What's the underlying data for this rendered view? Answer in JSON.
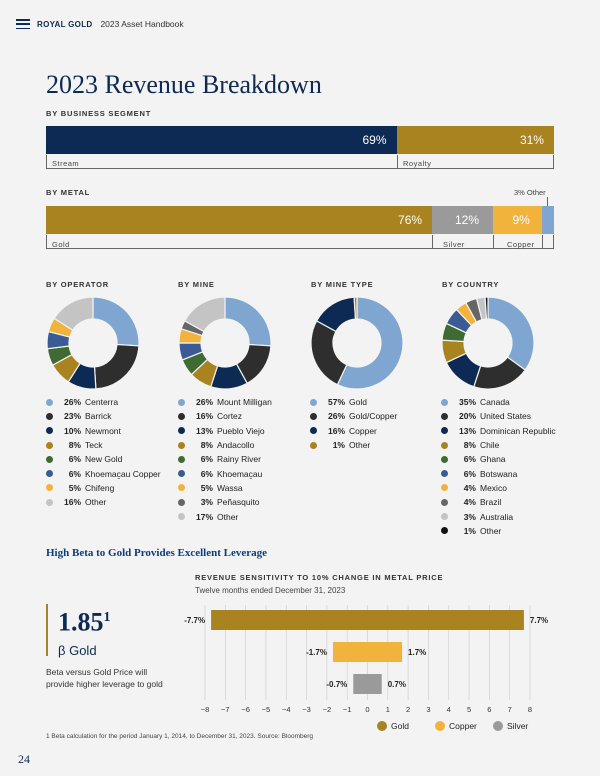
{
  "header": {
    "brand": "ROYAL GOLD",
    "book": "2023 Asset Handbook"
  },
  "title": "2023 Revenue Breakdown",
  "colors": {
    "navy": "#0d2a55",
    "gold": "#a8831f",
    "silver": "#9a9a9a",
    "copper": "#f2b33d",
    "other": "#7ea6d0"
  },
  "segment": {
    "heading": "BY BUSINESS SEGMENT",
    "stream": {
      "label": "Stream",
      "pct": "69%"
    },
    "royalty": {
      "label": "Royalty",
      "pct": "31%"
    }
  },
  "metal": {
    "heading": "BY METAL",
    "other_note": "3% Other",
    "gold": {
      "label": "Gold",
      "pct": "76%"
    },
    "silver": {
      "label": "Silver",
      "pct": "12%"
    },
    "copper": {
      "label": "Copper",
      "pct": "9%"
    },
    "other_pct": 3
  },
  "operator": {
    "heading": "BY OPERATOR",
    "items": [
      {
        "pct": "26%",
        "name": "Centerra",
        "value": 26,
        "color": "#7ea6d0"
      },
      {
        "pct": "23%",
        "name": "Barrick",
        "value": 23,
        "color": "#2e2e2e"
      },
      {
        "pct": "10%",
        "name": "Newmont",
        "value": 10,
        "color": "#0d2a55"
      },
      {
        "pct": "8%",
        "name": "Teck",
        "value": 8,
        "color": "#a8831f"
      },
      {
        "pct": "6%",
        "name": "New Gold",
        "value": 6,
        "color": "#3f6b32"
      },
      {
        "pct": "6%",
        "name": "Khoemac̱au Copper",
        "value": 6,
        "color": "#3b5b94"
      },
      {
        "pct": "5%",
        "name": "Chifeng",
        "value": 5,
        "color": "#f2b33d"
      },
      {
        "pct": "16%",
        "name": "Other",
        "value": 16,
        "color": "#c4c4c4"
      }
    ]
  },
  "mine": {
    "heading": "BY MINE",
    "items": [
      {
        "pct": "26%",
        "name": "Mount Milligan",
        "value": 26,
        "color": "#7ea6d0"
      },
      {
        "pct": "16%",
        "name": "Cortez",
        "value": 16,
        "color": "#2e2e2e"
      },
      {
        "pct": "13%",
        "name": "Pueblo Viejo",
        "value": 13,
        "color": "#0d2a55"
      },
      {
        "pct": "8%",
        "name": "Andacollo",
        "value": 8,
        "color": "#a8831f"
      },
      {
        "pct": "6%",
        "name": "Rainy River",
        "value": 6,
        "color": "#3f6b32"
      },
      {
        "pct": "6%",
        "name": "Khoemac̱au",
        "value": 6,
        "color": "#3b5b94"
      },
      {
        "pct": "5%",
        "name": "Wassa",
        "value": 5,
        "color": "#f2b33d"
      },
      {
        "pct": "3%",
        "name": "Peñasquito",
        "value": 3,
        "color": "#666666"
      },
      {
        "pct": "17%",
        "name": "Other",
        "value": 17,
        "color": "#c4c4c4"
      }
    ]
  },
  "minetype": {
    "heading": "BY MINE TYPE",
    "items": [
      {
        "pct": "57%",
        "name": "Gold",
        "value": 57,
        "color": "#7ea6d0"
      },
      {
        "pct": "26%",
        "name": "Gold/Copper",
        "value": 26,
        "color": "#2e2e2e"
      },
      {
        "pct": "16%",
        "name": "Copper",
        "value": 16,
        "color": "#0d2a55"
      },
      {
        "pct": "1%",
        "name": "Other",
        "value": 1,
        "color": "#a8831f"
      }
    ]
  },
  "country": {
    "heading": "BY COUNTRY",
    "items": [
      {
        "pct": "35%",
        "name": "Canada",
        "value": 35,
        "color": "#7ea6d0"
      },
      {
        "pct": "20%",
        "name": "United States",
        "value": 20,
        "color": "#2e2e2e"
      },
      {
        "pct": "13%",
        "name": "Dominican Republic",
        "value": 13,
        "color": "#0d2a55"
      },
      {
        "pct": "8%",
        "name": "Chile",
        "value": 8,
        "color": "#a8831f"
      },
      {
        "pct": "6%",
        "name": "Ghana",
        "value": 6,
        "color": "#3f6b32"
      },
      {
        "pct": "6%",
        "name": "Botswana",
        "value": 6,
        "color": "#3b5b94"
      },
      {
        "pct": "4%",
        "name": "Mexico",
        "value": 4,
        "color": "#f2b33d"
      },
      {
        "pct": "4%",
        "name": "Brazil",
        "value": 4,
        "color": "#666666"
      },
      {
        "pct": "3%",
        "name": "Australia",
        "value": 3,
        "color": "#c4c4c4"
      },
      {
        "pct": "1%",
        "name": "Other",
        "value": 1,
        "color": "#111111"
      }
    ]
  },
  "beta": {
    "heading": "High Beta to Gold Provides Excellent Leverage",
    "value": "1.85",
    "sup": "1",
    "label": "β Gold",
    "desc": "Beta versus Gold Price will provide higher leverage to gold"
  },
  "chart_data": {
    "type": "bar",
    "title": "REVENUE SENSITIVITY TO 10% CHANGE IN METAL PRICE",
    "subtitle": "Twelve months ended December 31, 2023",
    "orientation": "horizontal",
    "series": [
      {
        "name": "Gold",
        "low": -7.7,
        "high": 7.7,
        "low_label": "-7.7%",
        "high_label": "7.7%",
        "color": "#a8831f"
      },
      {
        "name": "Copper",
        "low": -1.7,
        "high": 1.7,
        "low_label": "-1.7%",
        "high_label": "1.7%",
        "color": "#f2b33d"
      },
      {
        "name": "Silver",
        "low": -0.7,
        "high": 0.7,
        "low_label": "-0.7%",
        "high_label": "0.7%",
        "color": "#9a9a9a"
      }
    ],
    "xlim": [
      -8,
      8
    ],
    "ticks": [
      "−8",
      "−7",
      "−6",
      "−5",
      "−4",
      "−3",
      "−2",
      "−1",
      "0",
      "1",
      "2",
      "3",
      "4",
      "5",
      "6",
      "7",
      "8"
    ],
    "grid": true,
    "legend": "bottom"
  },
  "footnote": "1    Beta calculation for the period January 1, 2014, to December 31, 2023. Source: Bloomberg",
  "page": "24"
}
